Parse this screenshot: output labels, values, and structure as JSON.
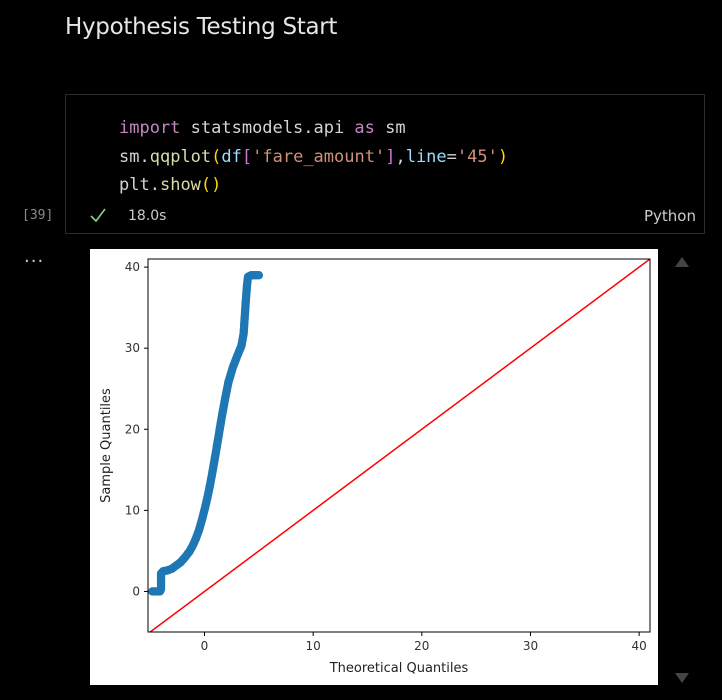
{
  "markdown": {
    "heading": "Hypothesis Testing Start"
  },
  "cell": {
    "code_lines": [
      [
        {
          "t": "import",
          "c": "kw"
        },
        {
          "t": " statsmodels.api ",
          "c": "plain"
        },
        {
          "t": "as",
          "c": "kw"
        },
        {
          "t": " sm",
          "c": "plain"
        }
      ],
      [
        {
          "t": "sm",
          "c": "plain"
        },
        {
          "t": ".",
          "c": "plain"
        },
        {
          "t": "qqplot",
          "c": "fn"
        },
        {
          "t": "(",
          "c": "br1"
        },
        {
          "t": "df",
          "c": "var"
        },
        {
          "t": "[",
          "c": "br2"
        },
        {
          "t": "'fare_amount'",
          "c": "str"
        },
        {
          "t": "]",
          "c": "br2"
        },
        {
          "t": ",",
          "c": "plain"
        },
        {
          "t": "line",
          "c": "var"
        },
        {
          "t": "=",
          "c": "plain"
        },
        {
          "t": "'45'",
          "c": "str"
        },
        {
          "t": ")",
          "c": "br1"
        }
      ],
      [
        {
          "t": "plt",
          "c": "plain"
        },
        {
          "t": ".",
          "c": "plain"
        },
        {
          "t": "show",
          "c": "fn"
        },
        {
          "t": "()",
          "c": "br1"
        }
      ]
    ],
    "execution_count": "[39]",
    "status": "success",
    "exec_time": "18.0s",
    "language": "Python"
  },
  "output": {
    "menu_label": "..."
  },
  "colors": {
    "background": "#000000",
    "success": "#89d185",
    "qq_points": "#1f77b4",
    "reference_line": "#ff0000"
  },
  "chart_data": {
    "type": "scatter",
    "title": "",
    "xlabel": "Theoretical Quantiles",
    "ylabel": "Sample Quantiles",
    "xlim": [
      -5.2,
      41
    ],
    "ylim": [
      -5,
      41
    ],
    "xticks": [
      0,
      10,
      20,
      30,
      40
    ],
    "yticks": [
      0,
      10,
      20,
      30,
      40
    ],
    "grid": false,
    "series": [
      {
        "marker": "circle",
        "points": [
          [
            -4.8,
            0.0
          ],
          [
            -4.4,
            0.0
          ],
          [
            -4.1,
            0.0
          ],
          [
            -4.0,
            0.3
          ],
          [
            -4.0,
            1.2
          ],
          [
            -4.0,
            2.2
          ],
          [
            -3.8,
            2.5
          ],
          [
            -3.4,
            2.6
          ],
          [
            -3.0,
            2.8
          ],
          [
            -2.6,
            3.2
          ],
          [
            -2.2,
            3.6
          ],
          [
            -1.8,
            4.2
          ],
          [
            -1.4,
            4.9
          ],
          [
            -1.1,
            5.6
          ],
          [
            -0.8,
            6.5
          ],
          [
            -0.5,
            7.6
          ],
          [
            -0.2,
            9.0
          ],
          [
            0.1,
            10.6
          ],
          [
            0.4,
            12.4
          ],
          [
            0.7,
            14.5
          ],
          [
            1.0,
            16.8
          ],
          [
            1.3,
            19.2
          ],
          [
            1.6,
            21.6
          ],
          [
            1.9,
            23.8
          ],
          [
            2.2,
            25.8
          ],
          [
            2.6,
            27.6
          ],
          [
            3.0,
            29.0
          ],
          [
            3.4,
            30.3
          ],
          [
            3.6,
            31.8
          ],
          [
            3.7,
            33.8
          ],
          [
            3.8,
            35.8
          ],
          [
            3.9,
            37.6
          ],
          [
            4.0,
            38.8
          ],
          [
            4.3,
            39.0
          ],
          [
            4.7,
            39.0
          ],
          [
            5.0,
            39.0
          ]
        ]
      }
    ],
    "reference_line": {
      "from": [
        -5.2,
        -5.2
      ],
      "to": [
        41,
        41
      ]
    }
  }
}
